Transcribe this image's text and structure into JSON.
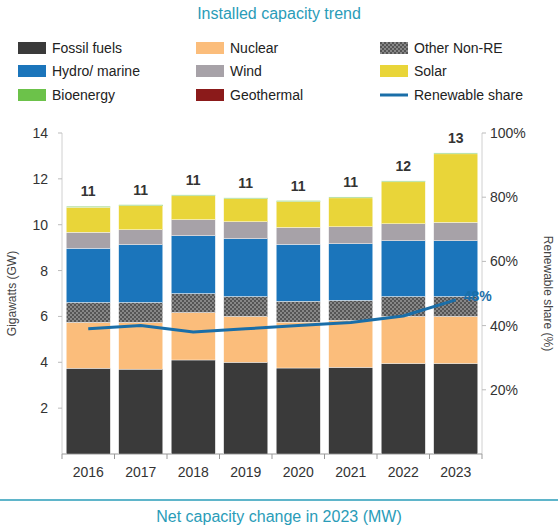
{
  "chart_data": {
    "type": "bar",
    "title": "Installed capacity trend",
    "subtitle": "Net capacity change in 2023 (MW)",
    "ylabel": "Gigawatts (GW)",
    "y2label": "Renewable share (%)",
    "categories": [
      "2016",
      "2017",
      "2018",
      "2019",
      "2020",
      "2021",
      "2022",
      "2023"
    ],
    "stacked": true,
    "grid": false,
    "legend": "top",
    "ylim": [
      0,
      14
    ],
    "yticks": [
      2,
      4,
      6,
      8,
      10,
      12,
      14
    ],
    "y2lim": [
      0,
      100
    ],
    "y2ticks": [
      {
        "value": 20,
        "label": "20%"
      },
      {
        "value": 40,
        "label": "40%"
      },
      {
        "value": 60,
        "label": "60%"
      },
      {
        "value": 80,
        "label": "80%"
      },
      {
        "value": 100,
        "label": "100%"
      }
    ],
    "series": [
      {
        "name": "Fossil fuels",
        "color": "#3a3a3a",
        "values": [
          3.74,
          3.7,
          4.1,
          4.0,
          3.75,
          3.78,
          3.95,
          3.95
        ]
      },
      {
        "name": "Nuclear",
        "color": "#fbbd7b",
        "values": [
          2.0,
          2.04,
          2.07,
          2.0,
          2.0,
          2.05,
          2.05,
          2.05
        ]
      },
      {
        "name": "Other Non-RE",
        "color": "#555555",
        "marker": "dotted",
        "values": [
          0.87,
          0.87,
          0.83,
          0.87,
          0.91,
          0.87,
          0.87,
          0.87
        ]
      },
      {
        "name": "Hydro/ marine",
        "color": "#1b75bb",
        "values": [
          2.36,
          2.52,
          2.52,
          2.52,
          2.48,
          2.47,
          2.43,
          2.43
        ]
      },
      {
        "name": "Wind",
        "color": "#a7a2a8",
        "values": [
          0.7,
          0.65,
          0.7,
          0.74,
          0.74,
          0.74,
          0.74,
          0.8
        ]
      },
      {
        "name": "Solar",
        "color": "#e9d539",
        "values": [
          1.09,
          1.05,
          1.04,
          1.0,
          1.13,
          1.26,
          1.83,
          2.99
        ]
      },
      {
        "name": "Bioenergy",
        "color": "#6cc24a",
        "values": [
          0.04,
          0.04,
          0.04,
          0.04,
          0.04,
          0.04,
          0.04,
          0.04
        ]
      },
      {
        "name": "Geothermal",
        "color": "#8b1a1a",
        "values": [
          0,
          0,
          0,
          0,
          0,
          0,
          0,
          0
        ]
      },
      {
        "name": "Renewable share",
        "type": "line",
        "axis": "y2",
        "color": "#1a6ea8",
        "values": [
          39,
          40,
          38,
          39,
          40,
          41,
          43,
          48
        ],
        "value_labels": [
          null,
          null,
          null,
          null,
          null,
          null,
          null,
          "48%"
        ]
      }
    ],
    "totals": [
      11,
      11,
      11,
      11,
      11,
      11,
      12,
      13
    ]
  }
}
